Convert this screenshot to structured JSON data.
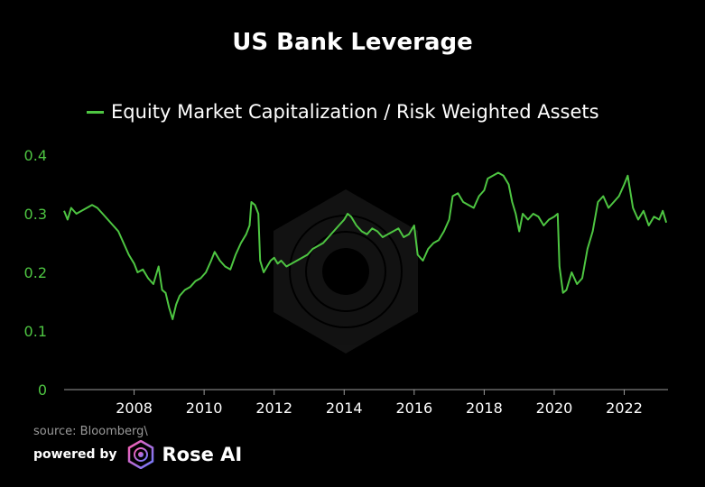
{
  "colors": {
    "background": "#000000",
    "line": "#4ec642",
    "text": "#ffffff",
    "axis_tick_y": "#4ec642"
  },
  "footer": {
    "source": "source: Bloomberg\\",
    "powered_by": "powered by",
    "brand": "Rose AI",
    "logo_icon": "rose-ai-logo-icon"
  },
  "chart_data": {
    "type": "line",
    "title": "US Bank Leverage",
    "xlabel": "",
    "ylabel": "",
    "legend_position": "top",
    "grid": false,
    "xlim": [
      2006.0,
      2023.25
    ],
    "ylim": [
      0,
      0.4
    ],
    "x_ticks": [
      2008,
      2010,
      2012,
      2014,
      2016,
      2018,
      2020,
      2022
    ],
    "y_ticks": [
      0,
      0.1,
      0.2,
      0.3,
      0.4
    ],
    "y_tick_labels": [
      "0",
      "0.1",
      "0.2",
      "0.3",
      "0.4"
    ],
    "series": [
      {
        "name": "Equity Market Capitalization / Risk Weighted Assets",
        "x": [
          2006.0,
          2006.1,
          2006.2,
          2006.35,
          2006.5,
          2006.65,
          2006.8,
          2006.95,
          2007.1,
          2007.25,
          2007.4,
          2007.55,
          2007.7,
          2007.85,
          2008.0,
          2008.1,
          2008.25,
          2008.4,
          2008.55,
          2008.7,
          2008.8,
          2008.9,
          2009.0,
          2009.1,
          2009.2,
          2009.3,
          2009.45,
          2009.6,
          2009.75,
          2009.9,
          2010.05,
          2010.2,
          2010.3,
          2010.45,
          2010.6,
          2010.75,
          2010.9,
          2011.05,
          2011.2,
          2011.3,
          2011.35,
          2011.45,
          2011.55,
          2011.6,
          2011.7,
          2011.8,
          2011.9,
          2012.0,
          2012.1,
          2012.2,
          2012.35,
          2012.5,
          2012.65,
          2012.8,
          2012.95,
          2013.1,
          2013.25,
          2013.4,
          2013.55,
          2013.7,
          2013.85,
          2014.0,
          2014.1,
          2014.2,
          2014.35,
          2014.5,
          2014.65,
          2014.8,
          2014.95,
          2015.1,
          2015.25,
          2015.4,
          2015.55,
          2015.7,
          2015.85,
          2016.0,
          2016.1,
          2016.25,
          2016.4,
          2016.55,
          2016.7,
          2016.85,
          2017.0,
          2017.1,
          2017.25,
          2017.4,
          2017.55,
          2017.7,
          2017.85,
          2018.0,
          2018.1,
          2018.25,
          2018.4,
          2018.55,
          2018.7,
          2018.8,
          2018.9,
          2019.0,
          2019.1,
          2019.25,
          2019.4,
          2019.55,
          2019.7,
          2019.85,
          2020.0,
          2020.1,
          2020.15,
          2020.25,
          2020.35,
          2020.5,
          2020.65,
          2020.8,
          2020.95,
          2021.1,
          2021.25,
          2021.4,
          2021.55,
          2021.7,
          2021.85,
          2022.0,
          2022.1,
          2022.25,
          2022.4,
          2022.55,
          2022.7,
          2022.85,
          2023.0,
          2023.1,
          2023.2
        ],
        "values": [
          0.305,
          0.29,
          0.31,
          0.3,
          0.305,
          0.31,
          0.315,
          0.31,
          0.3,
          0.29,
          0.28,
          0.27,
          0.25,
          0.23,
          0.215,
          0.2,
          0.205,
          0.19,
          0.18,
          0.21,
          0.17,
          0.165,
          0.14,
          0.12,
          0.145,
          0.16,
          0.17,
          0.175,
          0.185,
          0.19,
          0.2,
          0.22,
          0.235,
          0.22,
          0.21,
          0.205,
          0.23,
          0.25,
          0.265,
          0.28,
          0.32,
          0.315,
          0.3,
          0.22,
          0.2,
          0.21,
          0.22,
          0.225,
          0.215,
          0.22,
          0.21,
          0.215,
          0.22,
          0.225,
          0.23,
          0.24,
          0.245,
          0.25,
          0.26,
          0.27,
          0.28,
          0.29,
          0.3,
          0.295,
          0.28,
          0.27,
          0.265,
          0.275,
          0.27,
          0.26,
          0.265,
          0.27,
          0.275,
          0.26,
          0.265,
          0.28,
          0.23,
          0.22,
          0.24,
          0.25,
          0.255,
          0.27,
          0.29,
          0.33,
          0.335,
          0.32,
          0.315,
          0.31,
          0.33,
          0.34,
          0.36,
          0.365,
          0.37,
          0.365,
          0.35,
          0.32,
          0.3,
          0.27,
          0.3,
          0.29,
          0.3,
          0.295,
          0.28,
          0.29,
          0.295,
          0.3,
          0.21,
          0.165,
          0.17,
          0.2,
          0.18,
          0.19,
          0.24,
          0.27,
          0.32,
          0.33,
          0.31,
          0.32,
          0.33,
          0.35,
          0.365,
          0.31,
          0.29,
          0.305,
          0.28,
          0.295,
          0.29,
          0.305,
          0.285
        ]
      }
    ]
  }
}
